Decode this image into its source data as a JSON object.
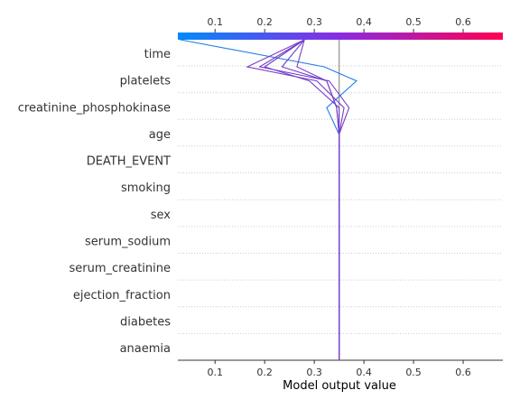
{
  "chart_data": {
    "type": "line",
    "subtype": "shap-decision-plot",
    "xlabel": "Model output value",
    "xlim": [
      0.025,
      0.68
    ],
    "x_ticks": [
      0.1,
      0.2,
      0.3,
      0.4,
      0.5,
      0.6
    ],
    "x_tick_labels": [
      "0.1",
      "0.2",
      "0.3",
      "0.4",
      "0.5",
      "0.6"
    ],
    "base_value": 0.35,
    "features": [
      "time",
      "platelets",
      "creatinine_phosphokinase",
      "age",
      "DEATH_EVENT",
      "smoking",
      "sex",
      "serum_sodium",
      "serum_creatinine",
      "ejection_fraction",
      "diabetes",
      "anaemia"
    ],
    "colorbar": {
      "start_color": "#008bfb",
      "end_color": "#ff0051",
      "range": [
        0.025,
        0.68
      ]
    },
    "series": [
      {
        "color": "#1f7ee8",
        "values": [
          0.03,
          0.32,
          0.385,
          0.325,
          0.35,
          0.35,
          0.35,
          0.35,
          0.35,
          0.35,
          0.35,
          0.35,
          0.35
        ]
      },
      {
        "color": "#6a40cf",
        "values": [
          0.28,
          0.235,
          0.325,
          0.345,
          0.35,
          0.35,
          0.35,
          0.35,
          0.35,
          0.35,
          0.35,
          0.35,
          0.35
        ]
      },
      {
        "color": "#7a3cc6",
        "values": [
          0.28,
          0.19,
          0.33,
          0.37,
          0.35,
          0.35,
          0.35,
          0.35,
          0.35,
          0.35,
          0.35,
          0.35,
          0.35
        ]
      },
      {
        "color": "#7a3cc6",
        "values": [
          0.28,
          0.165,
          0.305,
          0.36,
          0.35,
          0.35,
          0.35,
          0.35,
          0.35,
          0.35,
          0.35,
          0.35,
          0.35
        ]
      },
      {
        "color": "#6d40cc",
        "values": [
          0.28,
          0.2,
          0.29,
          0.35,
          0.35,
          0.35,
          0.35,
          0.35,
          0.35,
          0.35,
          0.35,
          0.35,
          0.35
        ]
      },
      {
        "color": "#7a3cc6",
        "values": [
          0.28,
          0.265,
          0.325,
          0.345,
          0.35,
          0.35,
          0.35,
          0.35,
          0.35,
          0.35,
          0.35,
          0.35,
          0.35
        ]
      }
    ]
  }
}
